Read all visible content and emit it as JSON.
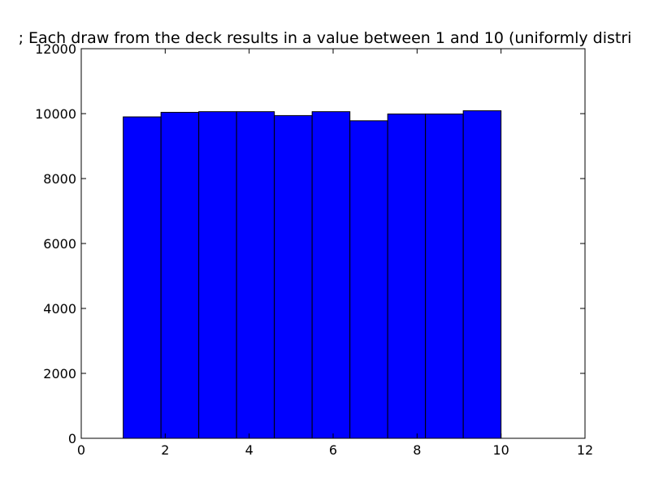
{
  "chart_data": {
    "type": "bar",
    "title": "; Each draw from the deck results in a value between 1 and 10 (uniformly distri",
    "xlabel": "",
    "ylabel": "",
    "xlim": [
      0,
      12
    ],
    "ylim": [
      0,
      12000
    ],
    "x_ticks": [
      0,
      2,
      4,
      6,
      8,
      10,
      12
    ],
    "y_ticks": [
      0,
      2000,
      4000,
      6000,
      8000,
      10000,
      12000
    ],
    "bin_edges": [
      1.0,
      1.9,
      2.8,
      3.7,
      4.6,
      5.5,
      6.4,
      7.3,
      8.2,
      9.1,
      10.0
    ],
    "values": [
      9900,
      10040,
      10060,
      10060,
      9940,
      10060,
      9780,
      9990,
      9990,
      10090
    ],
    "bar_color": "#0000ff",
    "edge_color": "#000000",
    "grid": false,
    "legend": false
  }
}
